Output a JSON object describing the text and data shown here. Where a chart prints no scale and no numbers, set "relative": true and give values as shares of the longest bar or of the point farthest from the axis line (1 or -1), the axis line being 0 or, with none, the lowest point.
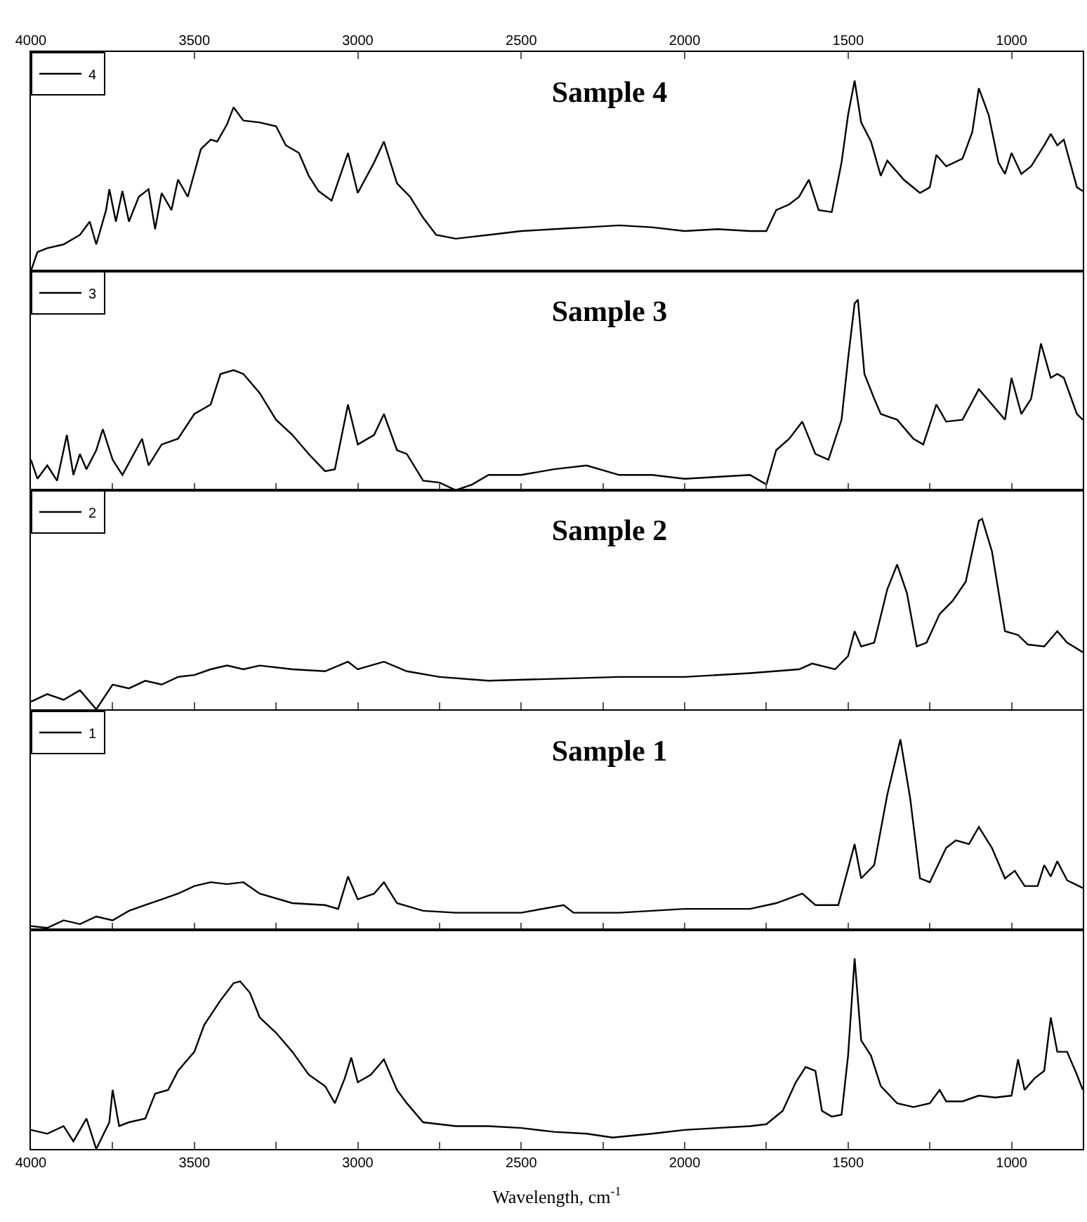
{
  "chart_data": [
    {
      "type": "line",
      "title": "Sample 4",
      "relative": true,
      "legend": "top left",
      "tick_labels": "x",
      "xlim": [
        4000,
        782
      ],
      "xticks": [
        4000,
        3500,
        3000,
        2500,
        2000,
        1500,
        1000
      ],
      "x": [
        4000,
        3980,
        3950,
        3900,
        3850,
        3820,
        3800,
        3770,
        3760,
        3740,
        3720,
        3700,
        3670,
        3640,
        3620,
        3600,
        3570,
        3550,
        3520,
        3480,
        3450,
        3430,
        3400,
        3380,
        3350,
        3300,
        3250,
        3220,
        3180,
        3150,
        3120,
        3080,
        3030,
        3000,
        2950,
        2920,
        2880,
        2840,
        2800,
        2760,
        2700,
        2650,
        2600,
        2500,
        2400,
        2300,
        2200,
        2100,
        2000,
        1900,
        1800,
        1750,
        1720,
        1680,
        1650,
        1620,
        1590,
        1550,
        1520,
        1500,
        1480,
        1460,
        1430,
        1400,
        1380,
        1330,
        1280,
        1250,
        1230,
        1200,
        1150,
        1120,
        1100,
        1070,
        1040,
        1020,
        1000,
        970,
        940,
        900,
        880,
        860,
        840,
        800,
        782
      ],
      "series": [
        {
          "name": "4",
          "color": "#000000",
          "values": [
            0,
            0.1,
            0.12,
            0.14,
            0.19,
            0.26,
            0.14,
            0.32,
            0.43,
            0.26,
            0.42,
            0.26,
            0.39,
            0.43,
            0.22,
            0.41,
            0.32,
            0.48,
            0.39,
            0.64,
            0.69,
            0.68,
            0.77,
            0.86,
            0.79,
            0.78,
            0.76,
            0.66,
            0.62,
            0.5,
            0.42,
            0.37,
            0.62,
            0.41,
            0.57,
            0.68,
            0.46,
            0.39,
            0.28,
            0.19,
            0.17,
            0.18,
            0.19,
            0.21,
            0.22,
            0.23,
            0.24,
            0.23,
            0.21,
            0.22,
            0.21,
            0.21,
            0.32,
            0.35,
            0.39,
            0.48,
            0.32,
            0.31,
            0.57,
            0.82,
            1.0,
            0.78,
            0.68,
            0.5,
            0.58,
            0.48,
            0.41,
            0.44,
            0.61,
            0.55,
            0.59,
            0.73,
            0.96,
            0.82,
            0.57,
            0.51,
            0.62,
            0.51,
            0.55,
            0.66,
            0.72,
            0.66,
            0.69,
            0.44,
            0.42
          ]
        }
      ]
    },
    {
      "type": "line",
      "title": "Sample 3",
      "relative": true,
      "legend": "top left",
      "tick_labels": false,
      "xlim": [
        4000,
        782
      ],
      "xticks": [
        {
          "value": 4000,
          "label": null
        },
        {
          "value": 3750,
          "label": null
        },
        {
          "value": 3500,
          "label": null
        },
        {
          "value": 3250,
          "label": null
        },
        {
          "value": 3000,
          "label": null
        },
        {
          "value": 2750,
          "label": null
        },
        {
          "value": 2500,
          "label": null
        },
        {
          "value": 2250,
          "label": null
        },
        {
          "value": 2000,
          "label": null
        },
        {
          "value": 1750,
          "label": null
        },
        {
          "value": 1500,
          "label": null
        },
        {
          "value": 1250,
          "label": null
        },
        {
          "value": 1000,
          "label": null
        }
      ],
      "x": [
        4000,
        3980,
        3950,
        3920,
        3890,
        3870,
        3850,
        3830,
        3800,
        3780,
        3750,
        3720,
        3660,
        3640,
        3600,
        3550,
        3500,
        3450,
        3420,
        3380,
        3350,
        3300,
        3250,
        3200,
        3150,
        3100,
        3070,
        3030,
        3000,
        2950,
        2920,
        2880,
        2850,
        2800,
        2750,
        2700,
        2650,
        2600,
        2500,
        2400,
        2300,
        2200,
        2100,
        2000,
        1900,
        1800,
        1750,
        1720,
        1680,
        1640,
        1600,
        1560,
        1520,
        1500,
        1480,
        1470,
        1450,
        1420,
        1400,
        1350,
        1300,
        1270,
        1230,
        1200,
        1150,
        1100,
        1050,
        1020,
        1000,
        970,
        940,
        910,
        880,
        860,
        840,
        800,
        782
      ],
      "series": [
        {
          "name": "3",
          "color": "#000000",
          "values": [
            0.16,
            0.06,
            0.13,
            0.05,
            0.29,
            0.08,
            0.19,
            0.11,
            0.21,
            0.32,
            0.16,
            0.08,
            0.27,
            0.13,
            0.24,
            0.27,
            0.4,
            0.45,
            0.61,
            0.63,
            0.61,
            0.51,
            0.37,
            0.29,
            0.19,
            0.1,
            0.11,
            0.45,
            0.24,
            0.29,
            0.4,
            0.21,
            0.19,
            0.05,
            0.04,
            0,
            0.03,
            0.08,
            0.08,
            0.11,
            0.13,
            0.08,
            0.08,
            0.06,
            0.07,
            0.08,
            0.03,
            0.21,
            0.27,
            0.36,
            0.19,
            0.16,
            0.37,
            0.69,
            0.98,
            1.0,
            0.61,
            0.48,
            0.4,
            0.37,
            0.27,
            0.24,
            0.45,
            0.36,
            0.37,
            0.53,
            0.43,
            0.37,
            0.59,
            0.4,
            0.48,
            0.77,
            0.59,
            0.61,
            0.59,
            0.4,
            0.37
          ]
        }
      ]
    },
    {
      "type": "line",
      "title": "Sample 2",
      "relative": true,
      "legend": "top left",
      "tick_labels": false,
      "xlim": [
        4000,
        782
      ],
      "xticks": [
        {
          "value": 4000,
          "label": null
        },
        {
          "value": 3750,
          "label": null
        },
        {
          "value": 3500,
          "label": null
        },
        {
          "value": 3250,
          "label": null
        },
        {
          "value": 3000,
          "label": null
        },
        {
          "value": 2750,
          "label": null
        },
        {
          "value": 2500,
          "label": null
        },
        {
          "value": 2250,
          "label": null
        },
        {
          "value": 2000,
          "label": null
        },
        {
          "value": 1750,
          "label": null
        },
        {
          "value": 1500,
          "label": null
        },
        {
          "value": 1250,
          "label": null
        },
        {
          "value": 1000,
          "label": null
        }
      ],
      "x": [
        4000,
        3950,
        3900,
        3850,
        3800,
        3750,
        3700,
        3650,
        3600,
        3550,
        3500,
        3450,
        3400,
        3350,
        3300,
        3200,
        3100,
        3030,
        3000,
        2920,
        2850,
        2750,
        2600,
        2400,
        2200,
        2000,
        1800,
        1650,
        1610,
        1540,
        1500,
        1480,
        1460,
        1420,
        1380,
        1350,
        1320,
        1290,
        1260,
        1220,
        1180,
        1140,
        1100,
        1090,
        1060,
        1020,
        980,
        950,
        900,
        860,
        830,
        782
      ],
      "series": [
        {
          "name": "2",
          "color": "#000000",
          "values": [
            0.04,
            0.08,
            0.05,
            0.1,
            0,
            0.13,
            0.11,
            0.15,
            0.13,
            0.17,
            0.18,
            0.21,
            0.23,
            0.21,
            0.23,
            0.21,
            0.2,
            0.25,
            0.21,
            0.25,
            0.2,
            0.17,
            0.15,
            0.16,
            0.17,
            0.17,
            0.19,
            0.21,
            0.24,
            0.21,
            0.28,
            0.41,
            0.33,
            0.35,
            0.63,
            0.76,
            0.61,
            0.33,
            0.35,
            0.5,
            0.57,
            0.67,
            0.99,
            1.0,
            0.83,
            0.41,
            0.39,
            0.34,
            0.33,
            0.41,
            0.35,
            0.3
          ]
        }
      ]
    },
    {
      "type": "line",
      "title": "Sample 1",
      "relative": true,
      "legend": "top left",
      "tick_labels": false,
      "xlim": [
        4000,
        782
      ],
      "xticks": [
        {
          "value": 4000,
          "label": null
        },
        {
          "value": 3750,
          "label": null
        },
        {
          "value": 3500,
          "label": null
        },
        {
          "value": 3250,
          "label": null
        },
        {
          "value": 3000,
          "label": null
        },
        {
          "value": 2750,
          "label": null
        },
        {
          "value": 2500,
          "label": null
        },
        {
          "value": 2250,
          "label": null
        },
        {
          "value": 2000,
          "label": null
        },
        {
          "value": 1750,
          "label": null
        },
        {
          "value": 1500,
          "label": null
        },
        {
          "value": 1250,
          "label": null
        },
        {
          "value": 1000,
          "label": null
        }
      ],
      "x": [
        4000,
        3950,
        3900,
        3850,
        3800,
        3750,
        3700,
        3650,
        3600,
        3550,
        3500,
        3450,
        3400,
        3350,
        3300,
        3200,
        3100,
        3060,
        3030,
        3000,
        2950,
        2920,
        2880,
        2800,
        2700,
        2500,
        2370,
        2340,
        2200,
        2000,
        1800,
        1720,
        1640,
        1600,
        1530,
        1500,
        1480,
        1460,
        1420,
        1380,
        1340,
        1310,
        1280,
        1250,
        1200,
        1170,
        1130,
        1100,
        1060,
        1020,
        990,
        960,
        920,
        900,
        880,
        860,
        830,
        782
      ],
      "series": [
        {
          "name": "1",
          "color": "#000000",
          "values": [
            0.02,
            0.01,
            0.05,
            0.03,
            0.07,
            0.05,
            0.1,
            0.13,
            0.16,
            0.19,
            0.23,
            0.25,
            0.24,
            0.25,
            0.19,
            0.14,
            0.13,
            0.11,
            0.28,
            0.16,
            0.19,
            0.25,
            0.14,
            0.1,
            0.09,
            0.09,
            0.13,
            0.09,
            0.09,
            0.11,
            0.11,
            0.14,
            0.19,
            0.13,
            0.13,
            0.32,
            0.45,
            0.27,
            0.34,
            0.71,
            1.0,
            0.69,
            0.27,
            0.25,
            0.43,
            0.47,
            0.45,
            0.54,
            0.43,
            0.27,
            0.31,
            0.23,
            0.23,
            0.34,
            0.28,
            0.36,
            0.26,
            0.22
          ]
        }
      ]
    },
    {
      "type": "line",
      "relative": true,
      "tick_labels": "x",
      "xlabel": "Wavelength, cm$^{-1}$",
      "xlim": [
        4000,
        782
      ],
      "xticks": [
        4000,
        {
          "value": 3750,
          "label": null
        },
        3500,
        {
          "value": 3250,
          "label": null
        },
        3000,
        {
          "value": 2750,
          "label": null
        },
        2500,
        {
          "value": 2250,
          "label": null
        },
        2000,
        {
          "value": 1750,
          "label": null
        },
        1500,
        {
          "value": 1250,
          "label": null
        },
        1000
      ],
      "x": [
        4000,
        3950,
        3900,
        3870,
        3830,
        3800,
        3760,
        3750,
        3730,
        3700,
        3650,
        3620,
        3580,
        3550,
        3500,
        3470,
        3420,
        3380,
        3360,
        3330,
        3300,
        3250,
        3200,
        3150,
        3100,
        3070,
        3040,
        3020,
        3000,
        2960,
        2920,
        2880,
        2850,
        2800,
        2700,
        2600,
        2500,
        2400,
        2300,
        2220,
        2100,
        2000,
        1900,
        1800,
        1750,
        1700,
        1660,
        1630,
        1600,
        1580,
        1550,
        1520,
        1500,
        1480,
        1460,
        1430,
        1400,
        1350,
        1300,
        1250,
        1220,
        1200,
        1150,
        1100,
        1050,
        1000,
        980,
        960,
        930,
        900,
        880,
        860,
        830,
        800,
        782
      ],
      "series": [
        {
          "color": "#000000",
          "values": [
            0.1,
            0.08,
            0.12,
            0.04,
            0.16,
            0,
            0.14,
            0.31,
            0.12,
            0.14,
            0.16,
            0.29,
            0.31,
            0.41,
            0.51,
            0.65,
            0.78,
            0.87,
            0.88,
            0.82,
            0.69,
            0.61,
            0.51,
            0.39,
            0.33,
            0.24,
            0.37,
            0.48,
            0.35,
            0.39,
            0.47,
            0.31,
            0.24,
            0.14,
            0.12,
            0.12,
            0.11,
            0.09,
            0.08,
            0.06,
            0.08,
            0.1,
            0.11,
            0.12,
            0.13,
            0.2,
            0.35,
            0.43,
            0.41,
            0.2,
            0.17,
            0.18,
            0.49,
            1.0,
            0.57,
            0.49,
            0.33,
            0.24,
            0.22,
            0.24,
            0.31,
            0.25,
            0.25,
            0.28,
            0.27,
            0.28,
            0.47,
            0.31,
            0.37,
            0.41,
            0.69,
            0.51,
            0.51,
            0.39,
            0.31
          ]
        }
      ]
    }
  ]
}
